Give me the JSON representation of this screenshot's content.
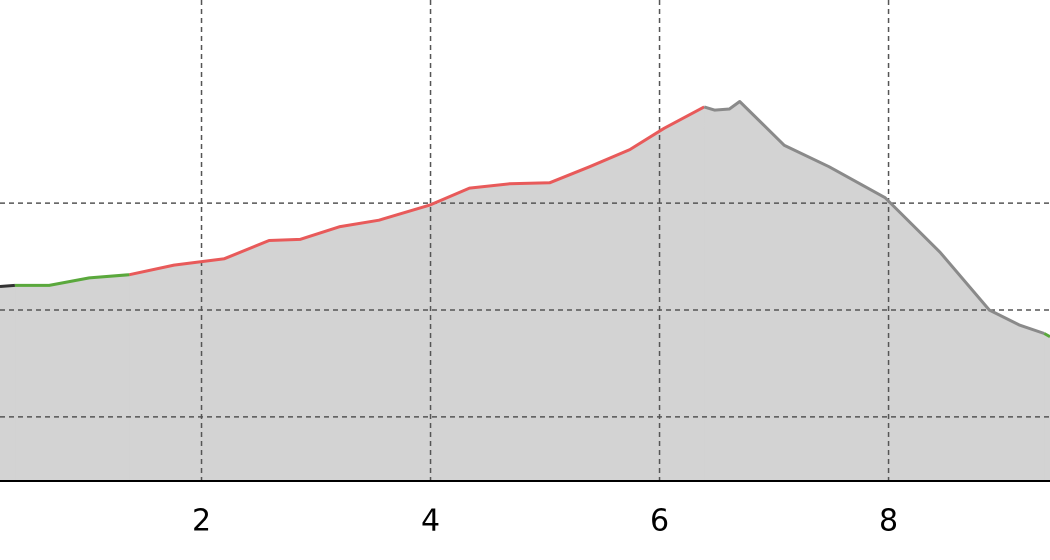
{
  "chart_data": {
    "type": "area",
    "xlim": [
      0.24,
      9.41
    ],
    "ylim": [
      40,
      490
    ],
    "xticks": [
      2,
      4,
      6,
      8
    ],
    "ygrid": [
      100,
      200,
      300
    ],
    "grid": true,
    "fill": "#d3d3d3",
    "series": [
      {
        "color": "#333333",
        "x": [
          0.24,
          0.37
        ],
        "values": [
          222,
          223
        ]
      },
      {
        "color": "#5aa83c",
        "x": [
          0.37,
          0.67,
          1.02,
          1.37
        ],
        "values": [
          223,
          223,
          230,
          233
        ]
      },
      {
        "color": "#e85a5a",
        "x": [
          1.37,
          1.76,
          2.2,
          2.59,
          2.86,
          3.21,
          3.55,
          3.99,
          4.34,
          4.69,
          5.04,
          5.39,
          5.74,
          6.04,
          6.39
        ],
        "values": [
          233,
          242,
          248,
          265,
          266,
          278,
          284,
          298,
          314,
          318,
          319,
          334,
          350,
          370,
          390
        ]
      },
      {
        "color": "#8a8a8a",
        "x": [
          6.39,
          6.48,
          6.61,
          6.7,
          7.09,
          7.48,
          7.97,
          8.45,
          8.88,
          9.14,
          9.36
        ],
        "values": [
          390,
          387,
          388,
          395,
          354,
          334,
          305,
          254,
          200,
          186,
          178
        ]
      },
      {
        "color": "#5aa83c",
        "x": [
          9.36,
          9.41
        ],
        "values": [
          178,
          175
        ]
      }
    ]
  }
}
